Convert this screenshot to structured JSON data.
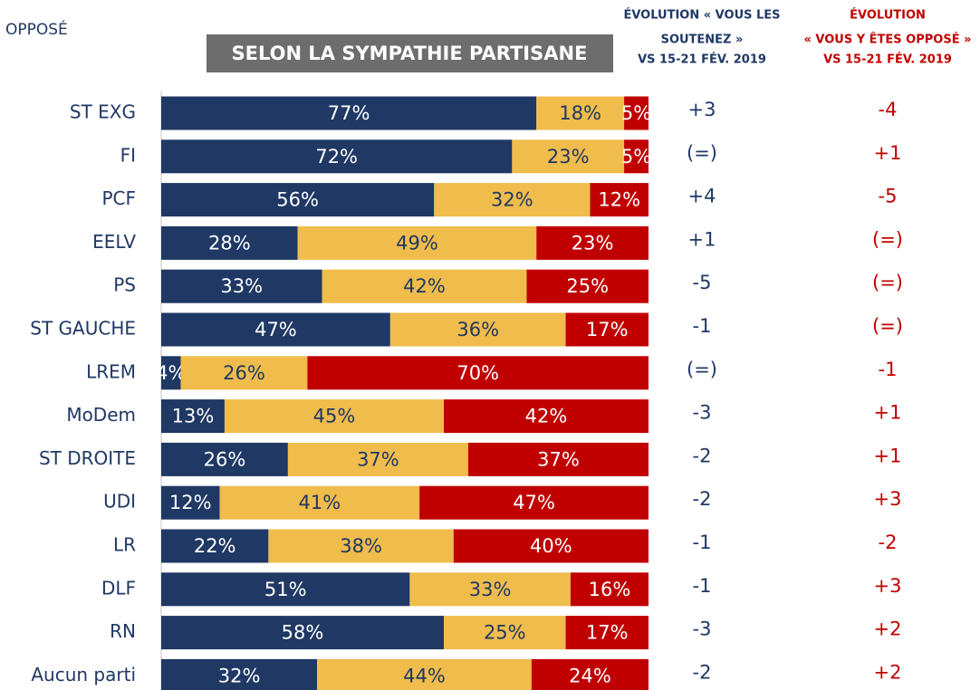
{
  "chart_data": {
    "type": "bar",
    "orientation": "horizontal",
    "stacked": true,
    "subtitle": "SELON LA SYMPATHIE PARTISANE",
    "categories": [
      "ST EXG",
      "FI",
      "PCF",
      "EELV",
      "PS",
      "ST GAUCHE",
      "LREM",
      "MoDem",
      "ST DROITE",
      "UDI",
      "LR",
      "DLF",
      "RN",
      "Aucun parti"
    ],
    "xlim": [
      0,
      100
    ],
    "series": [
      {
        "color": "#1f3864",
        "values": [
          77,
          72,
          56,
          28,
          33,
          47,
          4,
          13,
          26,
          12,
          22,
          51,
          58,
          32
        ],
        "value_labels": [
          "77%",
          "72%",
          "56%",
          "28%",
          "33%",
          "47%",
          "4%",
          "13%",
          "26%",
          "12%",
          "22%",
          "51%",
          "58%",
          "32%"
        ]
      },
      {
        "color": "#f0bc4c",
        "values": [
          18,
          23,
          32,
          49,
          42,
          36,
          26,
          45,
          37,
          41,
          38,
          33,
          25,
          44
        ],
        "value_labels": [
          "18%",
          "23%",
          "32%",
          "49%",
          "42%",
          "36%",
          "26%",
          "45%",
          "37%",
          "41%",
          "38%",
          "33%",
          "25%",
          "44%"
        ]
      },
      {
        "name": "OPPOSÉ",
        "color": "#c00000",
        "values": [
          5,
          5,
          12,
          23,
          25,
          17,
          70,
          42,
          37,
          47,
          40,
          16,
          17,
          24
        ],
        "value_labels": [
          "5%",
          "5%",
          "12%",
          "23%",
          "25%",
          "17%",
          "70%",
          "42%",
          "37%",
          "47%",
          "40%",
          "16%",
          "17%",
          "24%"
        ]
      }
    ],
    "columns": [
      {
        "color": "#1f3864",
        "header": [
          "ÉVOLUTION « VOUS LES",
          "SOUTENEZ »",
          "VS 15-21 FÉV. 2019"
        ],
        "labels": [
          "+3",
          "(=)",
          "+4",
          "+1",
          "-5",
          "-1",
          "(=)",
          "-3",
          "-2",
          "-2",
          "-1",
          "-1",
          "-3",
          "-2"
        ]
      },
      {
        "color": "#c00000",
        "header": [
          "ÉVOLUTION",
          "« VOUS Y ÊTES OPPOSÉ »",
          "VS 15-21 FÉV. 2019"
        ],
        "labels": [
          "-4",
          "+1",
          "-5",
          "(=)",
          "(=)",
          "(=)",
          "-1",
          "+1",
          "+1",
          "+3",
          "-2",
          "+3",
          "+2",
          "+2"
        ]
      }
    ]
  }
}
